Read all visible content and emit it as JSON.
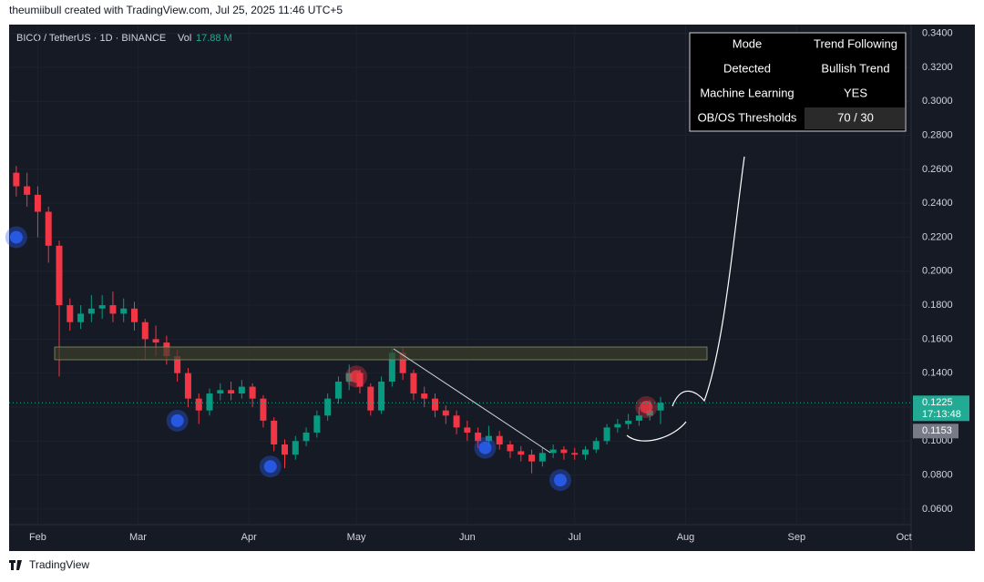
{
  "header": "theumiibull created with TradingView.com, Jul 25, 2025 11:46 UTC+5",
  "footer": "TradingView",
  "chart_data": {
    "type": "candlestick",
    "symbol": "BICO / TetherUS · 1D · BINANCE",
    "volume_label": "Vol",
    "volume_value": "17.88 M",
    "x": [
      -6,
      -3,
      0,
      3,
      6,
      9,
      12,
      15,
      18,
      21,
      24,
      27,
      30,
      33,
      36,
      39,
      42,
      45,
      48,
      51,
      54,
      57,
      60,
      63,
      66,
      69,
      72,
      75,
      78,
      81,
      84,
      87,
      90,
      93,
      96,
      99,
      102,
      105,
      108,
      111,
      114,
      117,
      120,
      123,
      126,
      129,
      132,
      135,
      138,
      141,
      144,
      147,
      150,
      153,
      156,
      159,
      162,
      165,
      168,
      171,
      174
    ],
    "open": [
      0.258,
      0.25,
      0.245,
      0.235,
      0.215,
      0.18,
      0.17,
      0.175,
      0.178,
      0.18,
      0.175,
      0.178,
      0.17,
      0.16,
      0.158,
      0.15,
      0.14,
      0.125,
      0.118,
      0.128,
      0.13,
      0.128,
      0.132,
      0.125,
      0.112,
      0.098,
      0.092,
      0.1,
      0.105,
      0.115,
      0.125,
      0.135,
      0.14,
      0.132,
      0.118,
      0.135,
      0.152,
      0.14,
      0.128,
      0.125,
      0.118,
      0.115,
      0.108,
      0.105,
      0.1,
      0.103,
      0.098,
      0.094,
      0.092,
      0.088,
      0.093,
      0.095,
      0.093,
      0.092,
      0.095,
      0.1,
      0.108,
      0.11,
      0.112,
      0.115,
      0.118
    ],
    "high": [
      0.262,
      0.258,
      0.25,
      0.238,
      0.218,
      0.184,
      0.18,
      0.186,
      0.186,
      0.188,
      0.184,
      0.182,
      0.172,
      0.168,
      0.162,
      0.154,
      0.143,
      0.128,
      0.131,
      0.134,
      0.135,
      0.136,
      0.134,
      0.127,
      0.114,
      0.101,
      0.103,
      0.108,
      0.118,
      0.128,
      0.138,
      0.145,
      0.142,
      0.134,
      0.138,
      0.155,
      0.155,
      0.142,
      0.132,
      0.128,
      0.121,
      0.118,
      0.112,
      0.108,
      0.109,
      0.106,
      0.1,
      0.097,
      0.095,
      0.096,
      0.098,
      0.097,
      0.096,
      0.097,
      0.102,
      0.11,
      0.113,
      0.116,
      0.12,
      0.124,
      0.126
    ],
    "low": [
      0.244,
      0.238,
      0.22,
      0.205,
      0.138,
      0.165,
      0.166,
      0.17,
      0.172,
      0.17,
      0.17,
      0.165,
      0.148,
      0.15,
      0.145,
      0.135,
      0.12,
      0.11,
      0.115,
      0.124,
      0.124,
      0.125,
      0.12,
      0.108,
      0.094,
      0.084,
      0.089,
      0.097,
      0.102,
      0.112,
      0.122,
      0.13,
      0.128,
      0.115,
      0.116,
      0.132,
      0.136,
      0.124,
      0.12,
      0.114,
      0.11,
      0.104,
      0.1,
      0.096,
      0.097,
      0.095,
      0.09,
      0.088,
      0.081,
      0.085,
      0.09,
      0.089,
      0.089,
      0.089,
      0.093,
      0.098,
      0.105,
      0.107,
      0.109,
      0.112,
      0.11
    ],
    "close": [
      0.25,
      0.245,
      0.235,
      0.215,
      0.18,
      0.17,
      0.175,
      0.178,
      0.18,
      0.175,
      0.178,
      0.17,
      0.16,
      0.158,
      0.15,
      0.14,
      0.125,
      0.118,
      0.128,
      0.13,
      0.128,
      0.132,
      0.125,
      0.112,
      0.098,
      0.092,
      0.1,
      0.105,
      0.115,
      0.125,
      0.135,
      0.14,
      0.132,
      0.118,
      0.135,
      0.152,
      0.14,
      0.128,
      0.125,
      0.118,
      0.115,
      0.108,
      0.105,
      0.1,
      0.103,
      0.098,
      0.094,
      0.092,
      0.088,
      0.093,
      0.095,
      0.093,
      0.092,
      0.095,
      0.1,
      0.108,
      0.11,
      0.112,
      0.115,
      0.118,
      0.1225
    ],
    "up_color": "#089981",
    "down_color": "#f23645",
    "signals": [
      {
        "color": "#2962ff",
        "x": [
          -6,
          39,
          65,
          125,
          146
        ],
        "values": [
          0.22,
          0.112,
          0.085,
          0.096,
          0.077
        ]
      },
      {
        "color": "#f23645",
        "x": [
          89,
          170
        ],
        "values": [
          0.138,
          0.12
        ]
      }
    ],
    "xlim": [
      -8,
      244
    ],
    "xticks": [
      {
        "value": 0,
        "label": "Feb"
      },
      {
        "value": 28,
        "label": "Mar"
      },
      {
        "value": 59,
        "label": "Apr"
      },
      {
        "value": 89,
        "label": "May"
      },
      {
        "value": 120,
        "label": "Jun"
      },
      {
        "value": 150,
        "label": "Jul"
      },
      {
        "value": 181,
        "label": "Aug"
      },
      {
        "value": 212,
        "label": "Sep"
      },
      {
        "value": 242,
        "label": "Oct"
      }
    ],
    "ylim": [
      0.0508,
      0.3452
    ],
    "yticks": [
      {
        "value": 0.06,
        "label": "0.0600"
      },
      {
        "value": 0.08,
        "label": "0.0800"
      },
      {
        "value": 0.1,
        "label": "0.1000"
      },
      {
        "value": 0.12,
        "label": "0.1200"
      },
      {
        "value": 0.14,
        "label": "0.1400"
      },
      {
        "value": 0.16,
        "label": "0.1600"
      },
      {
        "value": 0.18,
        "label": "0.1800"
      },
      {
        "value": 0.2,
        "label": "0.2000"
      },
      {
        "value": 0.22,
        "label": "0.2200"
      },
      {
        "value": 0.24,
        "label": "0.2400"
      },
      {
        "value": 0.26,
        "label": "0.2600"
      },
      {
        "value": 0.28,
        "label": "0.2800"
      },
      {
        "value": 0.3,
        "label": "0.3000"
      },
      {
        "value": 0.32,
        "label": "0.3200"
      },
      {
        "value": 0.34,
        "label": "0.3400"
      }
    ],
    "price_labels": [
      {
        "value": 0.1225,
        "label": "0.1225",
        "sub": "17:13:48",
        "color": "#22ab94"
      },
      {
        "value": 0.1153,
        "label": "0.1153",
        "color": "#787b86"
      }
    ],
    "table": [
      [
        "Mode",
        "Trend Following"
      ],
      [
        "Detected",
        "Bullish Trend"
      ],
      [
        "Machine Learning",
        "YES"
      ],
      [
        "OB/OS Thresholds",
        "70 / 30"
      ]
    ]
  }
}
